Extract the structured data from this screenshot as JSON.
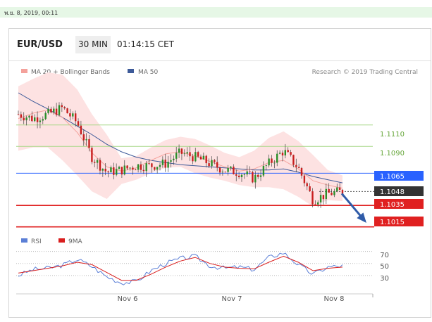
{
  "timestamp": "พ.ย. 8, 2019, 00:11",
  "header": {
    "pair": "EUR/USD",
    "timeframe": "30 MIN",
    "clock": "01:14:15 CET"
  },
  "legend": {
    "ma20": "MA 20 + Bollinger Bands",
    "ma50": "MA 50",
    "credit": "Research © 2019 Trading Central",
    "rsi": "RSI",
    "rsi_ma": "9MA"
  },
  "colors": {
    "ma20": "#f4a19b",
    "ma50": "#3d5a99",
    "band": "#fde2e2",
    "resistance": "#a6d785",
    "pivot": "#2962ff",
    "support": "#e02020",
    "current": "#333333",
    "arrow": "#2f5ba8",
    "rsi": "#5b7fd6",
    "rsi_ma": "#d91e1e"
  },
  "chart_data": [
    {
      "type": "line",
      "title": "EUR/USD 30 MIN",
      "x_ticks": [
        "Nov 6",
        "Nov 7",
        "Nov 8"
      ],
      "price_range": [
        1.1003,
        1.1159
      ],
      "series": [
        {
          "name": "MA 20 + Bollinger Bands",
          "values": [
            1.1116,
            1.1121,
            1.1124,
            1.1117,
            1.1103,
            1.1084,
            1.1071,
            1.1067,
            1.107,
            1.1077,
            1.1083,
            1.1085,
            1.1081,
            1.1076,
            1.1071,
            1.1067,
            1.1069,
            1.1075,
            1.1077,
            1.1069,
            1.1058,
            1.1054,
            1.1051
          ]
        },
        {
          "name": "MA 50",
          "values": [
            1.114,
            1.1132,
            1.1125,
            1.1117,
            1.1109,
            1.1101,
            1.1092,
            1.1085,
            1.108,
            1.1077,
            1.1075,
            1.1073,
            1.1072,
            1.1071,
            1.107,
            1.1069,
            1.1068,
            1.1068,
            1.1069,
            1.1066,
            1.1062,
            1.1059,
            1.1056
          ]
        }
      ],
      "price_path": [
        1.112,
        1.1116,
        1.112,
        1.1126,
        1.1112,
        1.108,
        1.1066,
        1.1068,
        1.1072,
        1.1072,
        1.1074,
        1.1084,
        1.108,
        1.1074,
        1.1068,
        1.1066,
        1.106,
        1.1074,
        1.1086,
        1.107,
        1.104,
        1.1046,
        1.1048
      ],
      "levels": [
        {
          "label": "1.1110",
          "value": 1.111,
          "kind": "resistance"
        },
        {
          "label": "1.1090",
          "value": 1.109,
          "kind": "resistance"
        },
        {
          "label": "1.1065",
          "value": 1.1065,
          "kind": "pivot"
        },
        {
          "label": "1.1048",
          "value": 1.1048,
          "kind": "current"
        },
        {
          "label": "1.1035",
          "value": 1.1035,
          "kind": "support"
        },
        {
          "label": "1.1015",
          "value": 1.1015,
          "kind": "support"
        }
      ],
      "forecast_arrow": {
        "from": 1.1048,
        "to": 1.1015,
        "direction": "down"
      }
    },
    {
      "type": "line",
      "title": "RSI",
      "y_ticks": [
        "70",
        "50",
        "30"
      ],
      "y_range": [
        10,
        80
      ],
      "series": [
        {
          "name": "RSI",
          "values": [
            30,
            40,
            42,
            47,
            57,
            45,
            28,
            18,
            20,
            38,
            50,
            58,
            62,
            46,
            42,
            44,
            40,
            60,
            68,
            48,
            32,
            44,
            46
          ]
        },
        {
          "name": "9MA",
          "values": [
            34,
            38,
            42,
            46,
            52,
            48,
            35,
            22,
            22,
            32,
            44,
            54,
            60,
            50,
            44,
            42,
            41,
            52,
            62,
            52,
            38,
            42,
            44
          ]
        }
      ]
    }
  ]
}
